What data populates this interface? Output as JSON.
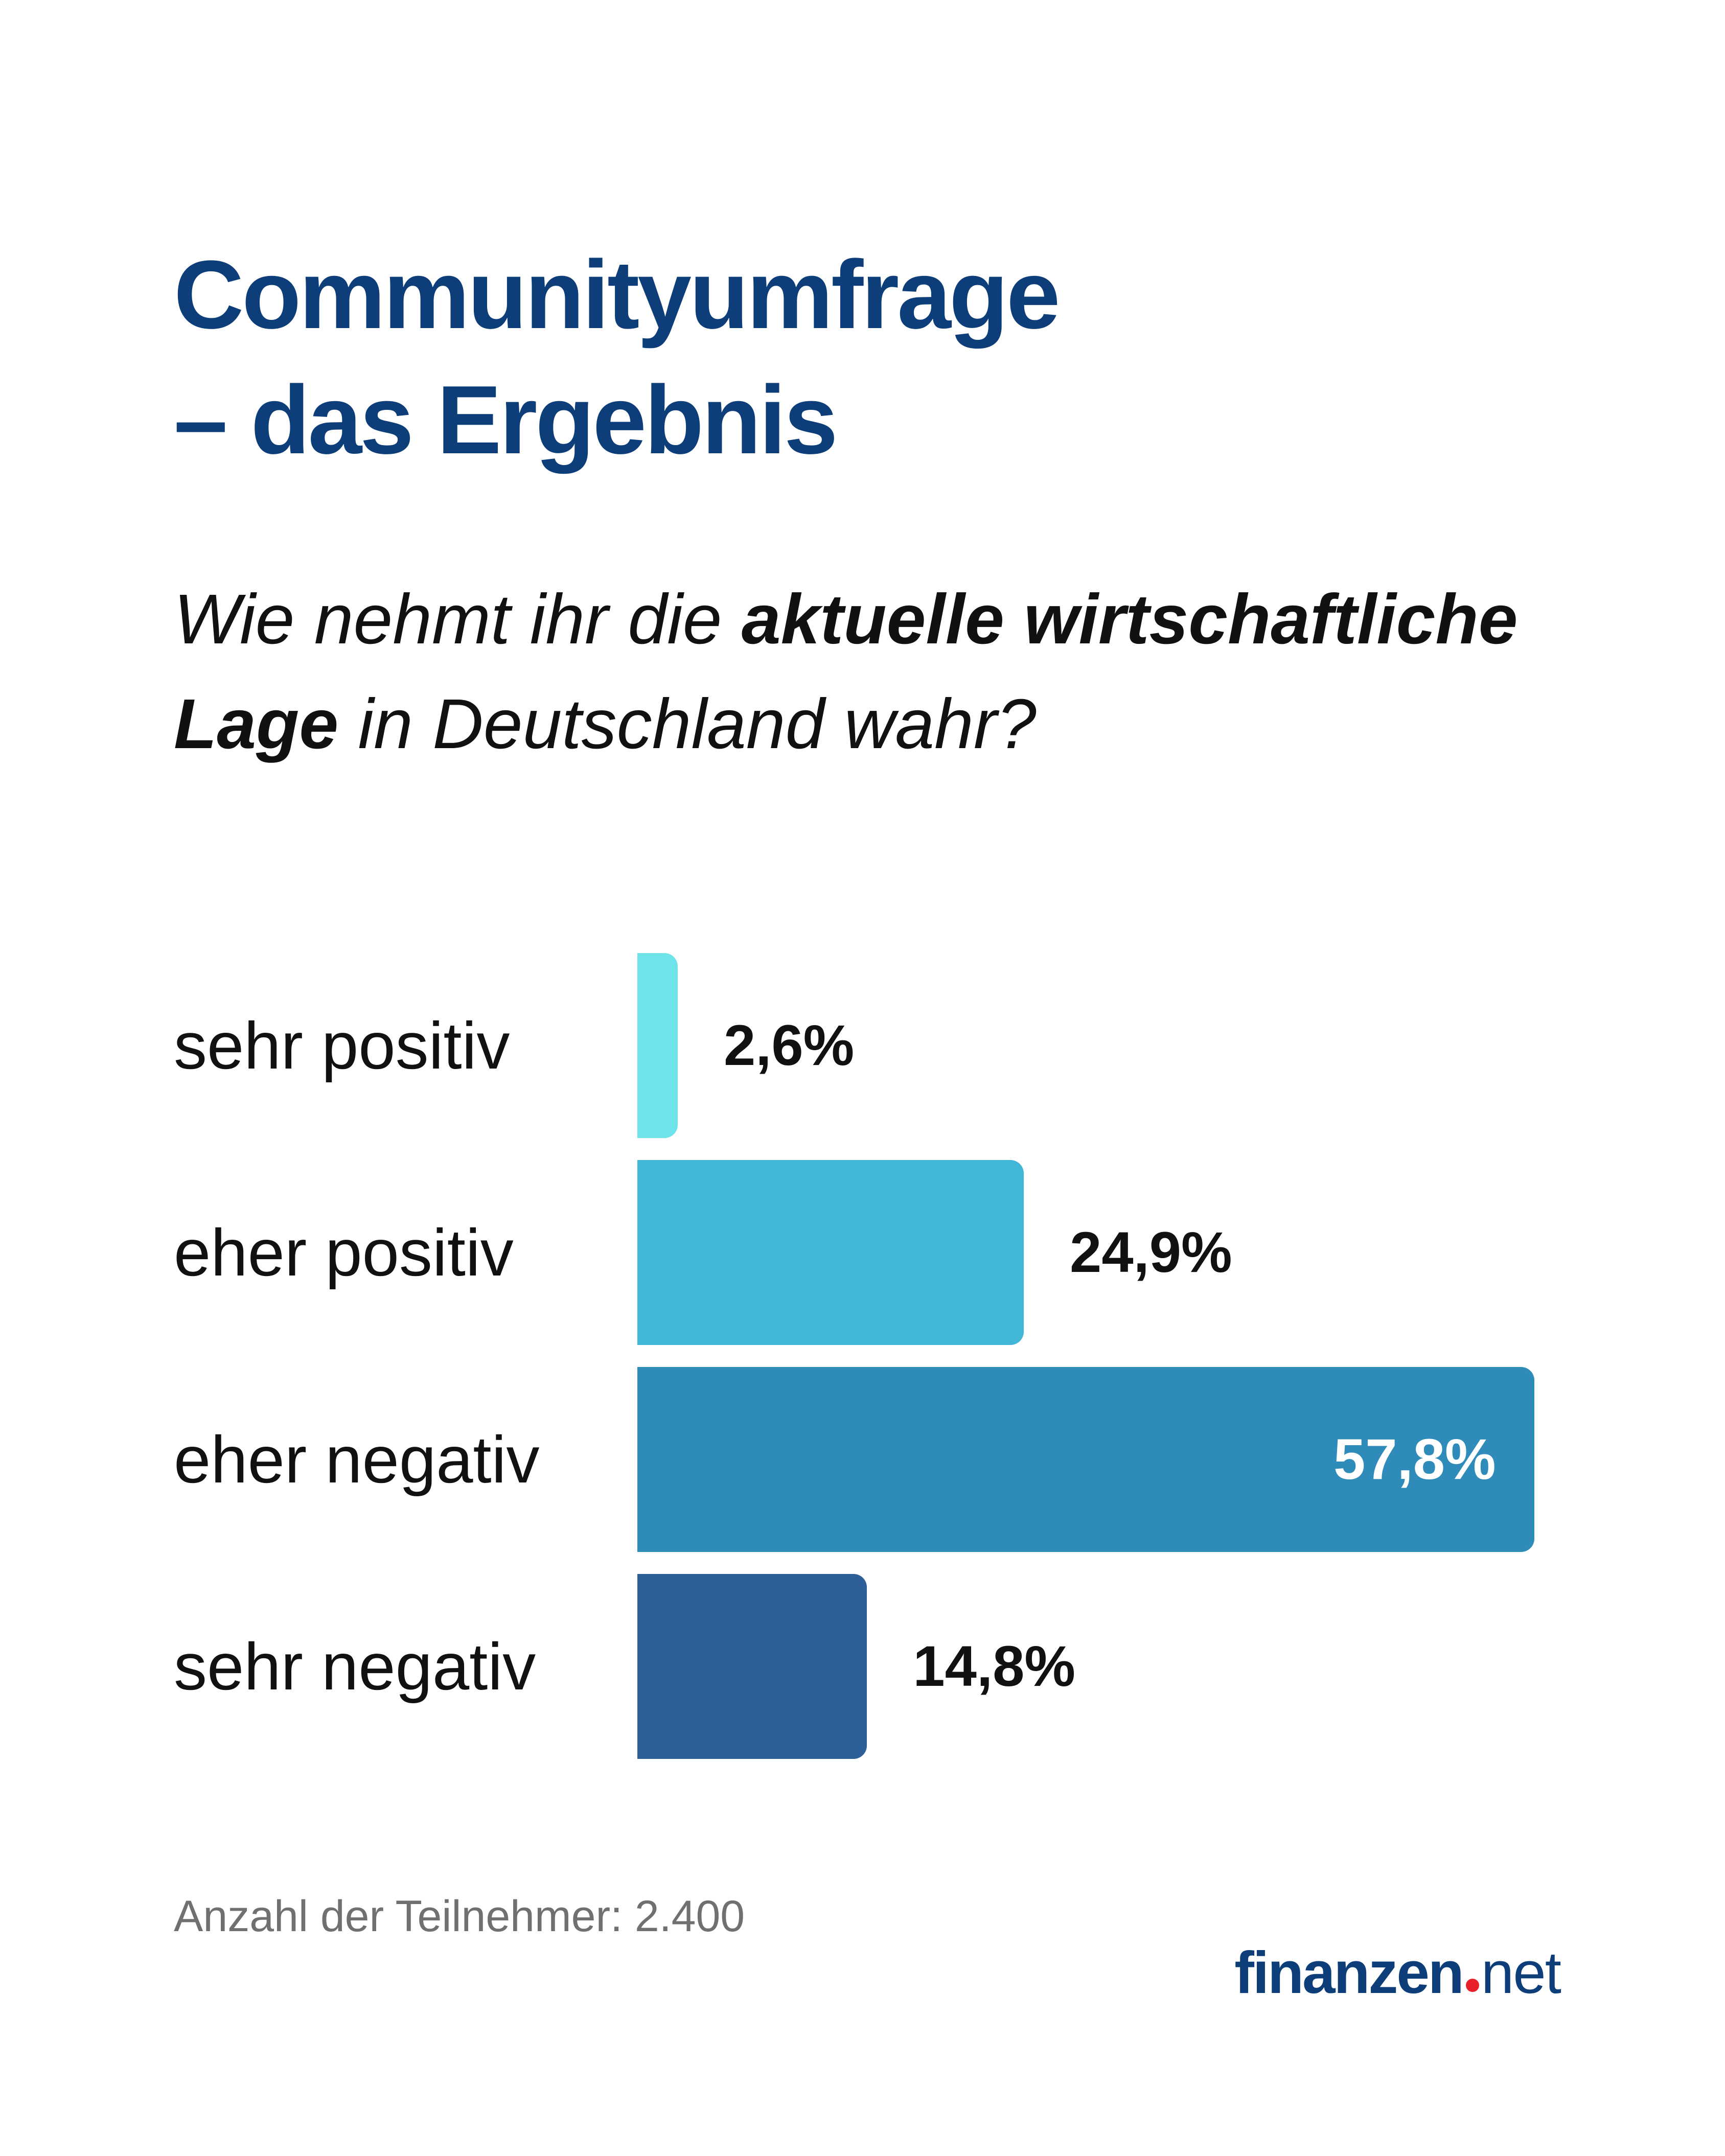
{
  "title": {
    "line1": "Communityumfrage",
    "line2": "– das Ergebnis"
  },
  "question": {
    "part1": "Wie nehmt ihr die ",
    "bold": "aktuelle wirtschaftliche Lage",
    "part2": " in Deutschland wahr?"
  },
  "chart_data": {
    "type": "bar",
    "orientation": "horizontal",
    "categories": [
      "sehr positiv",
      "eher positiv",
      "eher negativ",
      "sehr negativ"
    ],
    "values": [
      2.6,
      24.9,
      57.8,
      14.8
    ],
    "value_labels": [
      "2,6%",
      "24,9%",
      "57,8%",
      "14,8%"
    ],
    "colors": [
      "#6ee4ea",
      "#41b6d6",
      "#2e8bba",
      "#2d5f98"
    ],
    "value_label_colors": [
      "#111111",
      "#111111",
      "#ffffff",
      "#111111"
    ],
    "unit": "%",
    "title": "Communityumfrage – das Ergebnis",
    "xlim": [
      0,
      57.8
    ]
  },
  "footnote": "Anzahl der Teilnehmer: 2.400",
  "logo": {
    "brand": "finanzen",
    "tld": "net",
    "dot_color": "#e8202a"
  }
}
